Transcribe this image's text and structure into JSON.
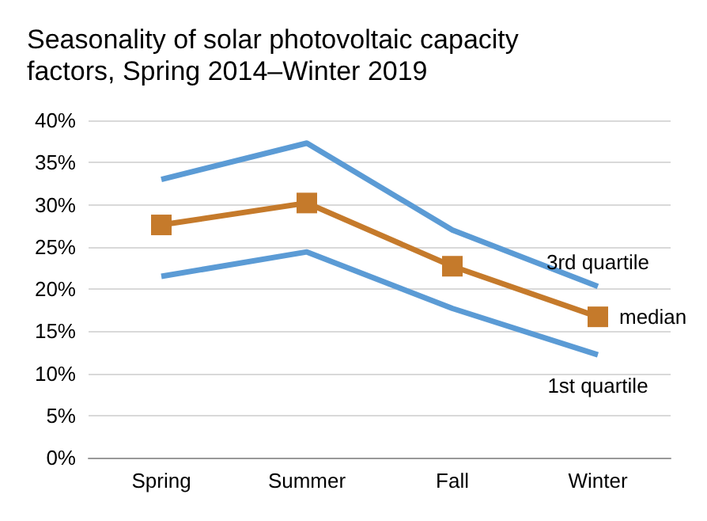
{
  "chart_data": {
    "type": "line",
    "title": "Seasonality of solar photovoltaic capacity factors, Spring 2014–Winter 2019",
    "categories": [
      "Spring",
      "Summer",
      "Fall",
      "Winter"
    ],
    "series": [
      {
        "name": "3rd quartile",
        "color": "#5b9bd5",
        "values": [
          33,
          37.3,
          27,
          20.3
        ],
        "marker": "none"
      },
      {
        "name": "median",
        "color": "#c57a2b",
        "values": [
          27.6,
          30.2,
          22.7,
          16.7
        ],
        "marker": "square"
      },
      {
        "name": "1st quartile",
        "color": "#5b9bd5",
        "values": [
          21.5,
          24.4,
          17.7,
          12.2
        ],
        "marker": "none"
      }
    ],
    "ylim": [
      0,
      40
    ],
    "yticks": [
      {
        "value": 0,
        "label": "0%"
      },
      {
        "value": 5,
        "label": "5%"
      },
      {
        "value": 10,
        "label": "10%"
      },
      {
        "value": 15,
        "label": "15%"
      },
      {
        "value": 20,
        "label": "20%"
      },
      {
        "value": 25,
        "label": "25%"
      },
      {
        "value": 30,
        "label": "30%"
      },
      {
        "value": 35,
        "label": "35%"
      },
      {
        "value": 40,
        "label": "40%"
      }
    ],
    "grid": "y",
    "legend": false,
    "line_style": "solid"
  }
}
